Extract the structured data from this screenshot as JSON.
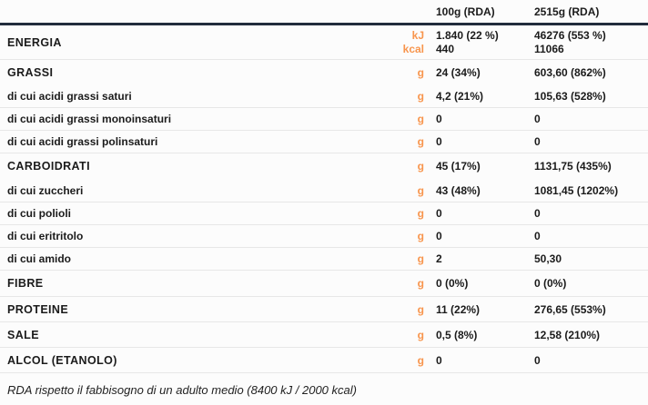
{
  "colors": {
    "accent": "#f8954d",
    "headerline": "#212c3c",
    "text": "#1b1b1b",
    "divider": "#e7e7e7",
    "bg": "#fcfcfc"
  },
  "header": {
    "col1": "100g (RDA)",
    "col2": "2515g (RDA)"
  },
  "energy": {
    "label": "ENERGIA",
    "unit_kj": "kJ",
    "unit_kcal": "kcal",
    "v1_kj": "1.840 (22 %)",
    "v1_kcal": "440",
    "v2_kj": "46276 (553 %)",
    "v2_kcal": "11066"
  },
  "rows": [
    {
      "label": "GRASSI",
      "unit": "g",
      "v1": "24 (34%)",
      "v2": "603,60 (862%)"
    },
    {
      "label": "di cui acidi grassi saturi",
      "unit": "g",
      "v1": "4,2 (21%)",
      "v2": "105,63 (528%)"
    },
    {
      "label": "di cui acidi grassi monoinsaturi",
      "unit": "g",
      "v1": "0",
      "v2": "0"
    },
    {
      "label": "di cui acidi grassi polinsaturi",
      "unit": "g",
      "v1": "0",
      "v2": "0"
    },
    {
      "label": "CARBOIDRATI",
      "unit": "g",
      "v1": "45 (17%)",
      "v2": "1131,75 (435%)"
    },
    {
      "label": "di cui zuccheri",
      "unit": "g",
      "v1": "43 (48%)",
      "v2": "1081,45 (1202%)"
    },
    {
      "label": "di cui polioli",
      "unit": "g",
      "v1": "0",
      "v2": "0"
    },
    {
      "label": "di cui eritritolo",
      "unit": "g",
      "v1": "0",
      "v2": "0"
    },
    {
      "label": "di cui amido",
      "unit": "g",
      "v1": "2",
      "v2": "50,30"
    },
    {
      "label": "FIBRE",
      "unit": "g",
      "v1": "0 (0%)",
      "v2": "0 (0%)"
    },
    {
      "label": "PROTEINE",
      "unit": "g",
      "v1": "11 (22%)",
      "v2": "276,65 (553%)"
    },
    {
      "label": "SALE",
      "unit": "g",
      "v1": "0,5 (8%)",
      "v2": "12,58 (210%)"
    },
    {
      "label": "ALCOL (ETANOLO)",
      "unit": "g",
      "v1": "0",
      "v2": "0"
    }
  ],
  "footnote": "RDA rispetto il fabbisogno di un adulto medio (8400 kJ / 2000 kcal)"
}
